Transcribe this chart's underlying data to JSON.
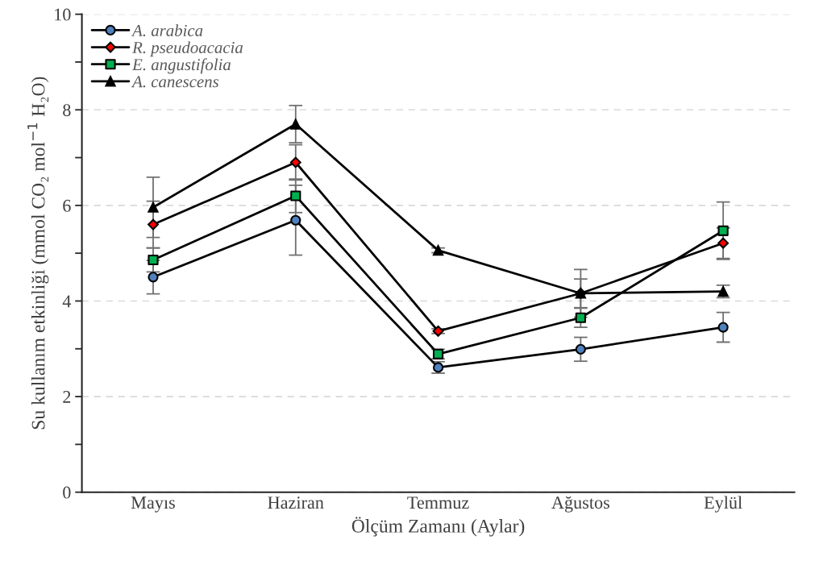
{
  "chart_data": {
    "type": "line",
    "xlabel": "Ölçüm Zamanı (Aylar)",
    "ylabel": "Su kullanım etkinliği (mmol CO₂ mol$^{−1}$ H₂O)",
    "categories": [
      "Mayıs",
      "Haziran",
      "Temmuz",
      "Ağustos",
      "Eylül"
    ],
    "series": [
      {
        "name": "A. arabica",
        "color": "#030303",
        "colors": [
          "#4f81bd",
          "#4f81bd",
          "#4f81bd",
          "#4f81bd",
          "#4f81bd"
        ],
        "marker": "circle",
        "values": [
          4.5,
          5.69,
          2.61,
          2.99,
          3.45
        ],
        "errors": [
          0.35,
          0.73,
          0.12,
          0.25,
          0.31
        ]
      },
      {
        "name": "R. pseudoacacia",
        "color": "#020202",
        "colors": [
          "#ff0000",
          "#ff0000",
          "#ff0000",
          "#ff0000",
          "#ff0000"
        ],
        "marker": "diamond",
        "values": [
          5.6,
          6.9,
          3.37,
          4.16,
          5.21
        ],
        "errors": [
          0.49,
          0.37,
          0.05,
          0.3,
          0.32
        ]
      },
      {
        "name": "E. angustifolia",
        "color": "#010101",
        "colors": [
          "#00b050",
          "#00b050",
          "#00b050",
          "#00b050",
          "#00b050"
        ],
        "marker": "square",
        "values": [
          4.86,
          6.2,
          2.89,
          3.65,
          5.47
        ],
        "errors": [
          0.25,
          0.35,
          0.1,
          0.2,
          0.6
        ]
      },
      {
        "name": "A. canescens",
        "color": "#000000",
        "marker": "triangle",
        "values": [
          5.96,
          7.7,
          5.06,
          4.16,
          4.2
        ],
        "errors": [
          0.63,
          0.39,
          0.05,
          0.5,
          0.13
        ]
      }
    ],
    "ylim": [
      0,
      10
    ],
    "yticks": [
      0,
      {
        "value": 1,
        "label": null
      },
      2,
      {
        "value": 3,
        "label": null
      },
      4,
      {
        "value": 5,
        "label": null
      },
      6,
      {
        "value": 7,
        "label": null
      },
      8,
      {
        "value": 9,
        "label": null
      },
      10
    ],
    "grid": "y",
    "legend": "top left",
    "line_style": "solid"
  }
}
